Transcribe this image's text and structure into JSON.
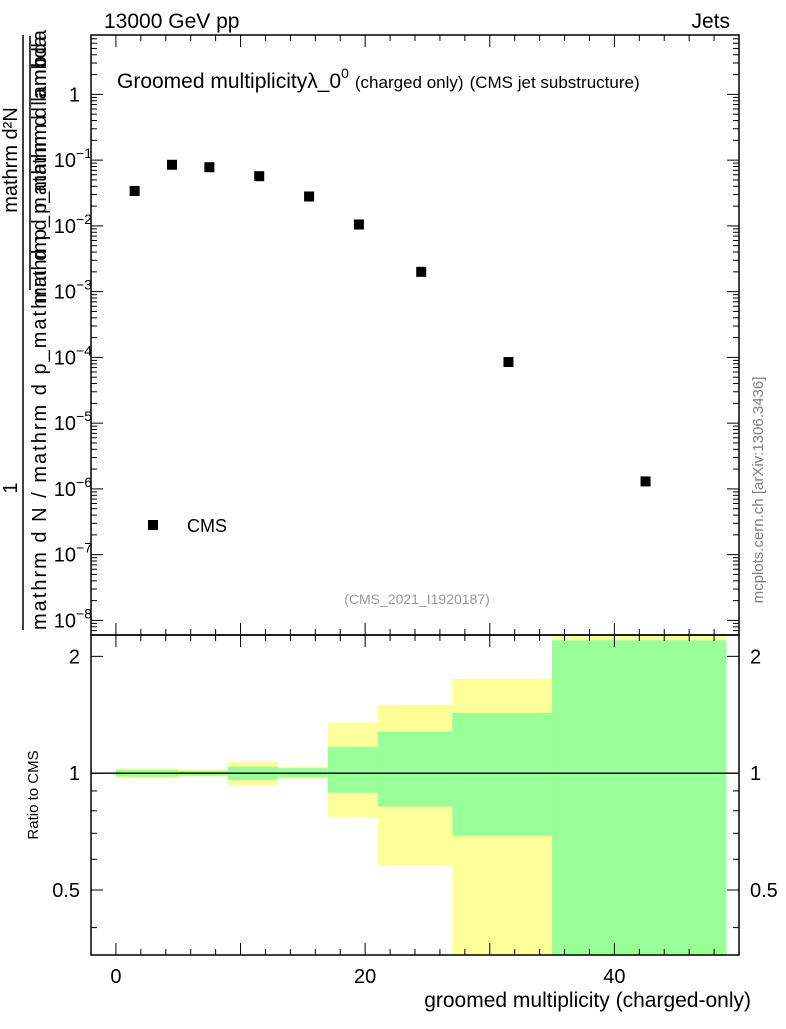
{
  "header": {
    "energy_label": "13000 GeV pp",
    "category_label": "Jets"
  },
  "watermark": {
    "side_text": "mcplots.cern.ch [arXiv:1306.3436]",
    "analysis_id": "(CMS_2021_I1920187)"
  },
  "chart_data": [
    {
      "type": "scatter",
      "panel": "main",
      "title": {
        "main": "Groomed multiplicity",
        "lambda": "λ_0",
        "superscript": "0",
        "suffix_small": "(charged only)",
        "suffix": "(CMS jet substructure)"
      },
      "ylabel": {
        "numerator": "1",
        "denominator": "mathrm d N / mathrm d p_mathrm d p_mathrm d lambda",
        "right_top": "mathrm d²N",
        "right_bottom": "mathrm d p_mathrm d lambda"
      },
      "y_scale": "log",
      "ylim": [
        6e-09,
        8
      ],
      "xlim": [
        -2,
        50
      ],
      "yticks": [
        {
          "value": 1,
          "base": "1",
          "exp": ""
        },
        {
          "value": 0.1,
          "base": "10",
          "exp": "−1"
        },
        {
          "value": 0.01,
          "base": "10",
          "exp": "−2"
        },
        {
          "value": 0.001,
          "base": "10",
          "exp": "−3"
        },
        {
          "value": 0.0001,
          "base": "10",
          "exp": "−4"
        },
        {
          "value": 1e-05,
          "base": "10",
          "exp": "−5"
        },
        {
          "value": 1e-06,
          "base": "10",
          "exp": "−6"
        },
        {
          "value": 1e-07,
          "base": "10",
          "exp": "−7"
        },
        {
          "value": 1e-08,
          "base": "10",
          "exp": "−8"
        }
      ],
      "series": [
        {
          "name": "CMS",
          "marker": "square",
          "color": "#000000",
          "points": [
            {
              "x": 1.5,
              "y": 0.034
            },
            {
              "x": 4.5,
              "y": 0.085
            },
            {
              "x": 7.5,
              "y": 0.078
            },
            {
              "x": 11.5,
              "y": 0.057
            },
            {
              "x": 15.5,
              "y": 0.028
            },
            {
              "x": 19.5,
              "y": 0.0105
            },
            {
              "x": 24.5,
              "y": 0.002
            },
            {
              "x": 31.5,
              "y": 8.5e-05
            },
            {
              "x": 42.5,
              "y": 1.3e-06
            }
          ]
        }
      ],
      "legend": {
        "position": "bottom-left",
        "label": "CMS"
      }
    },
    {
      "type": "area",
      "panel": "ratio",
      "ylabel": "Ratio to CMS",
      "xlabel": "groomed multiplicity (charged-only)",
      "xlim": [
        -2,
        50
      ],
      "ylim": [
        0.34,
        2.27
      ],
      "y_scale": "log",
      "xticks": [
        0,
        20,
        40
      ],
      "yticks": [
        0.5,
        1,
        2
      ],
      "reference_line": 1,
      "bins": [
        {
          "xlow": 0,
          "xhigh": 5,
          "outer": [
            0.97,
            1.03
          ],
          "inner": [
            0.98,
            1.02
          ]
        },
        {
          "xlow": 5,
          "xhigh": 9,
          "outer": [
            0.98,
            1.02
          ],
          "inner": [
            0.985,
            1.015
          ]
        },
        {
          "xlow": 9,
          "xhigh": 13,
          "outer": [
            0.93,
            1.07
          ],
          "inner": [
            0.96,
            1.04
          ]
        },
        {
          "xlow": 13,
          "xhigh": 17,
          "outer": [
            0.97,
            1.04
          ],
          "inner": [
            0.975,
            1.03
          ]
        },
        {
          "xlow": 17,
          "xhigh": 21,
          "outer": [
            0.77,
            1.35
          ],
          "inner": [
            0.89,
            1.17
          ]
        },
        {
          "xlow": 21,
          "xhigh": 27,
          "outer": [
            0.58,
            1.5
          ],
          "inner": [
            0.82,
            1.28
          ]
        },
        {
          "xlow": 27,
          "xhigh": 35,
          "outer": [
            0.34,
            1.75
          ],
          "inner": [
            0.69,
            1.43
          ]
        },
        {
          "xlow": 35,
          "xhigh": 49,
          "outer": [
            0.34,
            2.27
          ],
          "inner": [
            0.34,
            2.2
          ]
        }
      ],
      "band_colors": {
        "outer": "#ffff99",
        "inner": "#99ff99"
      }
    }
  ]
}
